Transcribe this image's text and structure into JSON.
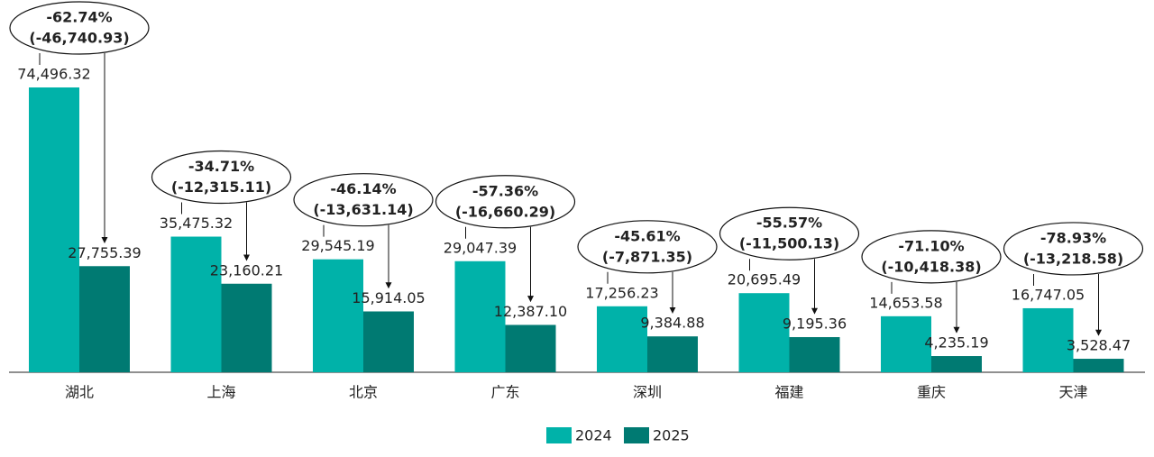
{
  "chart_data": {
    "type": "bar",
    "categories": [
      "湖北",
      "上海",
      "北京",
      "广东",
      "深圳",
      "福建",
      "重庆",
      "天津"
    ],
    "series": [
      {
        "name": "2024",
        "color": "#00b2a9",
        "values": [
          74496.32,
          35475.32,
          29545.19,
          29047.39,
          17256.23,
          20695.49,
          14653.58,
          16747.05
        ],
        "value_labels": [
          "74,496.32",
          "35,475.32",
          "29,545.19",
          "29,047.39",
          "17,256.23",
          "20,695.49",
          "14,653.58",
          "16,747.05"
        ]
      },
      {
        "name": "2025",
        "color": "#007a72",
        "values": [
          27755.39,
          23160.21,
          15914.05,
          12387.1,
          9384.88,
          9195.36,
          4235.19,
          3528.47
        ],
        "value_labels": [
          "27,755.39",
          "23,160.21",
          "15,914.05",
          "12,387.10",
          "9,384.88",
          "9,195.36",
          "4,235.19",
          "3,528.47"
        ]
      }
    ],
    "annotations": [
      {
        "pct": "-62.74%",
        "diff": "(-46,740.93)"
      },
      {
        "pct": "-34.71%",
        "diff": "(-12,315.11)"
      },
      {
        "pct": "-46.14%",
        "diff": "(-13,631.14)"
      },
      {
        "pct": "-57.36%",
        "diff": "(-16,660.29)"
      },
      {
        "pct": "-45.61%",
        "diff": "(-7,871.35)"
      },
      {
        "pct": "-55.57%",
        "diff": "(-11,500.13)"
      },
      {
        "pct": "-71.10%",
        "diff": "(-10,418.38)"
      },
      {
        "pct": "-78.93%",
        "diff": "(-13,218.58)"
      }
    ],
    "legend": "bottom"
  }
}
